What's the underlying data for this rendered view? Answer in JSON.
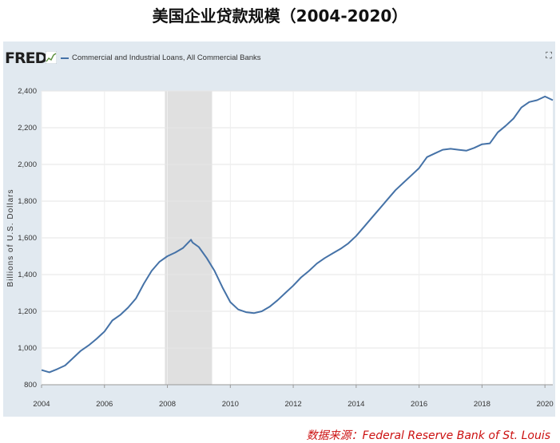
{
  "page": {
    "title": "美国企业贷款规模（2004-2020）",
    "source": "数据来源：Federal Reserve Bank of St. Louis"
  },
  "fred": {
    "logo_text": "FRED",
    "expand_icon": "expand-icon"
  },
  "colors": {
    "series": "#4572a7",
    "recession": "#e0e0e0",
    "panel": "#e1e9f0",
    "source_text": "#cc1111"
  },
  "chart_data": {
    "type": "line",
    "title": "",
    "ylabel": "Billions of U.S. Dollars",
    "xlabel": "",
    "ylim": [
      800,
      2400
    ],
    "xlim": [
      2004,
      2020.25
    ],
    "y_ticks": [
      "2,400",
      "2,200",
      "2,000",
      "1,800",
      "1,600",
      "1,400",
      "1,200",
      "1,000",
      "800"
    ],
    "x_ticks": [
      "2004",
      "2006",
      "2008",
      "2010",
      "2012",
      "2014",
      "2016",
      "2018",
      "2020"
    ],
    "grid": true,
    "legend": "top-left",
    "recessions": [
      [
        2007.92,
        2009.42
      ]
    ],
    "series": [
      {
        "name": "Commercial and Industrial Loans, All Commercial Banks",
        "x": [
          2004.0,
          2004.25,
          2004.5,
          2004.75,
          2005.0,
          2005.25,
          2005.5,
          2005.75,
          2006.0,
          2006.25,
          2006.5,
          2006.75,
          2007.0,
          2007.25,
          2007.5,
          2007.75,
          2008.0,
          2008.25,
          2008.5,
          2008.75,
          2008.8,
          2009.0,
          2009.25,
          2009.5,
          2009.75,
          2010.0,
          2010.25,
          2010.5,
          2010.75,
          2011.0,
          2011.25,
          2011.5,
          2011.75,
          2012.0,
          2012.25,
          2012.5,
          2012.75,
          2013.0,
          2013.25,
          2013.5,
          2013.75,
          2014.0,
          2014.25,
          2014.5,
          2014.75,
          2015.0,
          2015.25,
          2015.5,
          2015.75,
          2016.0,
          2016.25,
          2016.5,
          2016.75,
          2017.0,
          2017.25,
          2017.5,
          2017.75,
          2018.0,
          2018.25,
          2018.5,
          2018.75,
          2019.0,
          2019.25,
          2019.5,
          2019.75,
          2020.0,
          2020.25
        ],
        "values": [
          880,
          868,
          885,
          905,
          945,
          985,
          1015,
          1050,
          1090,
          1150,
          1180,
          1220,
          1270,
          1350,
          1420,
          1470,
          1500,
          1520,
          1545,
          1590,
          1575,
          1550,
          1490,
          1420,
          1330,
          1250,
          1210,
          1195,
          1190,
          1200,
          1225,
          1260,
          1300,
          1340,
          1385,
          1420,
          1460,
          1490,
          1515,
          1540,
          1570,
          1610,
          1660,
          1710,
          1760,
          1810,
          1860,
          1900,
          1940,
          1980,
          2040,
          2060,
          2080,
          2085,
          2080,
          2075,
          2090,
          2110,
          2115,
          2175,
          2210,
          2250,
          2310,
          2340,
          2350,
          2370,
          2350
        ]
      }
    ]
  }
}
